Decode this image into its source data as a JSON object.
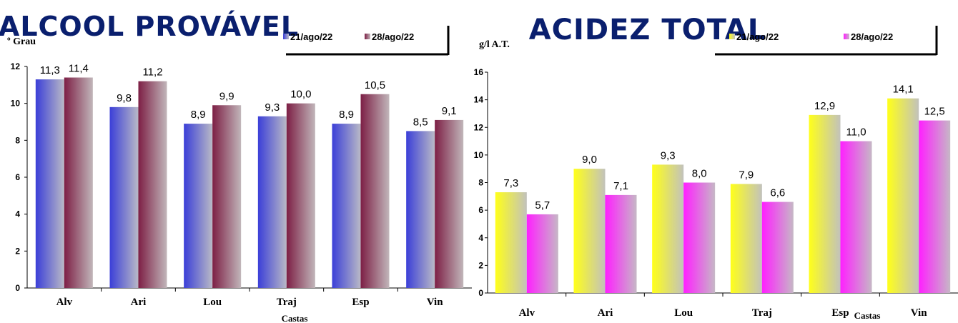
{
  "chart_data": [
    {
      "type": "bar",
      "title": "ALCOOL PROVÁVEL",
      "ylabel": "º Grau",
      "xlabel": "Castas",
      "categories": [
        "Alv",
        "Ari",
        "Lou",
        "Traj",
        "Esp",
        "Vin"
      ],
      "ylim": [
        0,
        12
      ],
      "yticks": [
        0,
        2,
        4,
        6,
        8,
        10,
        12
      ],
      "series": [
        {
          "name": "21/ago/22",
          "values": [
            11.3,
            9.8,
            8.9,
            9.3,
            8.9,
            8.5
          ],
          "labels": [
            "11,3",
            "9,8",
            "8,9",
            "9,3",
            "8,9",
            "8,5"
          ],
          "color_from": "#3b3fd8",
          "color_to": "#b9b9c6"
        },
        {
          "name": "28/ago/22",
          "values": [
            11.4,
            11.2,
            9.9,
            10.0,
            10.5,
            9.1
          ],
          "labels": [
            "11,4",
            "11,2",
            "9,9",
            "10,0",
            "10,5",
            "9,1"
          ],
          "color_from": "#7d1f45",
          "color_to": "#c1b6ba"
        }
      ],
      "legend": "top-right",
      "grid": false
    },
    {
      "type": "bar",
      "title": "ACIDEZ TOTAL",
      "ylabel": "g/l A.T.",
      "xlabel": "Castas",
      "categories": [
        "Alv",
        "Ari",
        "Lou",
        "Traj",
        "Esp",
        "Vin"
      ],
      "ylim": [
        0,
        16
      ],
      "yticks": [
        0,
        2,
        4,
        6,
        8,
        10,
        12,
        14,
        16
      ],
      "series": [
        {
          "name": "21/ago/22",
          "values": [
            7.3,
            9.0,
            9.3,
            7.9,
            12.9,
            14.1
          ],
          "labels": [
            "7,3",
            "9,0",
            "9,3",
            "7,9",
            "12,9",
            "14,1"
          ],
          "color_from": "#ffff1a",
          "color_to": "#c2c2bc"
        },
        {
          "name": "28/ago/22",
          "values": [
            5.7,
            7.1,
            8.0,
            6.6,
            11.0,
            12.5
          ],
          "labels": [
            "5,7",
            "7,1",
            "8,0",
            "6,6",
            "11,0",
            "12,5"
          ],
          "color_from": "#ff1fff",
          "color_to": "#c6b8c6"
        }
      ],
      "legend": "top-right",
      "grid": false
    }
  ]
}
